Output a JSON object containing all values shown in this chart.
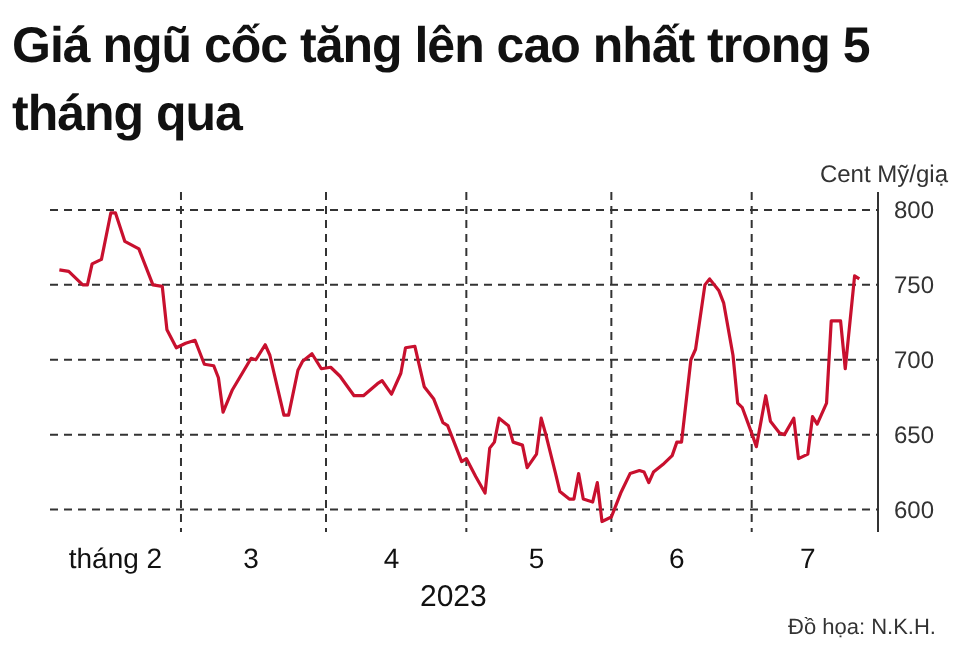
{
  "chart_data": {
    "type": "line",
    "title": "Giá ngũ cốc tăng lên cao nhất trong 5 tháng qua",
    "ylabel": "Cent Mỹ/giạ",
    "xlabel": "2023",
    "annotations": [
      "Đồ họa: N.K.H."
    ],
    "x": [
      "2023-02-03",
      "2023-02-05",
      "2023-02-08",
      "2023-02-09",
      "2023-02-10",
      "2023-02-12",
      "2023-02-14",
      "2023-02-15",
      "2023-02-17",
      "2023-02-20",
      "2023-02-23",
      "2023-02-25",
      "2023-02-26",
      "2023-02-28",
      "2023-03-02",
      "2023-03-04",
      "2023-03-06",
      "2023-03-08",
      "2023-03-09",
      "2023-03-10",
      "2023-03-12",
      "2023-03-16",
      "2023-03-17",
      "2023-03-19",
      "2023-03-20",
      "2023-03-23",
      "2023-03-24",
      "2023-03-26",
      "2023-03-27",
      "2023-03-29",
      "2023-03-31",
      "2023-04-02",
      "2023-04-04",
      "2023-04-07",
      "2023-04-09",
      "2023-04-12",
      "2023-04-13",
      "2023-04-15",
      "2023-04-17",
      "2023-04-18",
      "2023-04-20",
      "2023-04-22",
      "2023-04-24",
      "2023-04-26",
      "2023-04-27",
      "2023-04-30",
      "2023-05-01",
      "2023-05-03",
      "2023-05-05",
      "2023-05-06",
      "2023-05-07",
      "2023-05-08",
      "2023-05-10",
      "2023-05-11",
      "2023-05-13",
      "2023-05-14",
      "2023-05-16",
      "2023-05-17",
      "2023-05-18",
      "2023-05-20",
      "2023-05-21",
      "2023-05-23",
      "2023-05-24",
      "2023-05-25",
      "2023-05-26",
      "2023-05-28",
      "2023-05-29",
      "2023-05-30",
      "2023-06-01",
      "2023-06-03",
      "2023-06-05",
      "2023-06-07",
      "2023-06-08",
      "2023-06-09",
      "2023-06-10",
      "2023-06-12",
      "2023-06-14",
      "2023-06-15",
      "2023-06-16",
      "2023-06-18",
      "2023-06-19",
      "2023-06-21",
      "2023-06-22",
      "2023-06-24",
      "2023-06-25",
      "2023-06-27",
      "2023-06-28",
      "2023-06-29",
      "2023-07-01",
      "2023-07-02",
      "2023-07-04",
      "2023-07-05",
      "2023-07-07",
      "2023-07-08",
      "2023-07-10",
      "2023-07-11",
      "2023-07-13",
      "2023-07-14",
      "2023-07-15",
      "2023-07-17",
      "2023-07-18",
      "2023-07-20",
      "2023-07-21",
      "2023-07-23",
      "2023-07-24"
    ],
    "series": [
      {
        "color": "#c8102e",
        "values": [
          760,
          759,
          750,
          750,
          764,
          767,
          798,
          798,
          779,
          774,
          750,
          749,
          720,
          708,
          711,
          713,
          697,
          696,
          688,
          665,
          680,
          701,
          700,
          710,
          703,
          663,
          663,
          693,
          699,
          704,
          694,
          695,
          689,
          676,
          676,
          684,
          686,
          677,
          691,
          708,
          709,
          682,
          674,
          658,
          656,
          632,
          634,
          622,
          611,
          641,
          645,
          661,
          656,
          645,
          643,
          628,
          637,
          661,
          650,
          625,
          612,
          607,
          607,
          624,
          607,
          605,
          618,
          592,
          595,
          611,
          624,
          626,
          625,
          618,
          625,
          630,
          636,
          645,
          645,
          700,
          707,
          750,
          754,
          746,
          738,
          703,
          671,
          668,
          651,
          642,
          676,
          659,
          651,
          650,
          661,
          634,
          637,
          662,
          657,
          671,
          726,
          726,
          694,
          756,
          754
        ]
      }
    ],
    "xlim": [
      "2023-02-01",
      "2023-07-28"
    ],
    "xticks": [
      {
        "value": "2023-02-15",
        "label": "tháng 2"
      },
      {
        "value": "2023-03-01",
        "label": null
      },
      {
        "value": "2023-03-16",
        "label": "3"
      },
      {
        "value": "2023-04-01",
        "label": null
      },
      {
        "value": "2023-04-15",
        "label": "4"
      },
      {
        "value": "2023-05-01",
        "label": null
      },
      {
        "value": "2023-05-16",
        "label": "5"
      },
      {
        "value": "2023-06-01",
        "label": null
      },
      {
        "value": "2023-06-15",
        "label": "6"
      },
      {
        "value": "2023-07-01",
        "label": null
      },
      {
        "value": "2023-07-13",
        "label": "7"
      }
    ],
    "ylim": [
      585,
      812
    ],
    "yticks": [
      600,
      650,
      700,
      750,
      800
    ],
    "grid": true,
    "line_style": "solid",
    "marker": "none"
  }
}
